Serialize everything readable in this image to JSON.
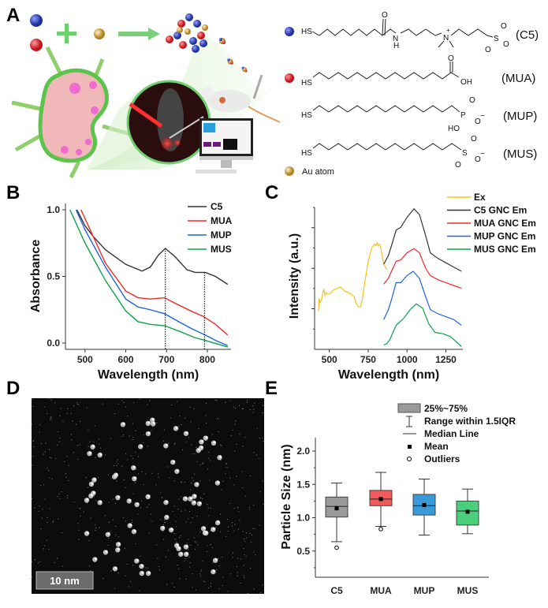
{
  "panels": {
    "a": "A",
    "b": "B",
    "c": "C",
    "d": "D",
    "e": "E"
  },
  "panel_a": {
    "ligands": [
      {
        "name": "(C5)",
        "color": "#3b4fc4"
      },
      {
        "name": "(MUA)",
        "color": "#e8323c"
      },
      {
        "name": "(MUP)"
      },
      {
        "name": "(MUS)"
      }
    ],
    "atoms": {
      "hs": "HS",
      "o": "O",
      "n": "N",
      "h": "H",
      "plus": "+",
      "s": "S",
      "minus": "−",
      "oh": "OH",
      "ho": "HO",
      "p": "P"
    },
    "au_label": "Au atom",
    "au_color": "#d4a93a"
  },
  "panel_d": {
    "scale_bar": "10 nm"
  },
  "chart_data": [
    {
      "id": "B",
      "type": "line",
      "xlabel": "Wavelength (nm)",
      "ylabel": "Absorbance",
      "xlim": [
        450,
        850
      ],
      "ylim": [
        -0.05,
        1.05
      ],
      "xticks": [
        "500",
        "600",
        "700",
        "800"
      ],
      "xtick_values": [
        500,
        600,
        700,
        800
      ],
      "yticks": [
        "0.0",
        "0.5",
        "1.0"
      ],
      "ytick_values": [
        0,
        0.5,
        1.0
      ],
      "legend_position": "top-right",
      "reference_lines_x": [
        697,
        793
      ],
      "series": [
        {
          "name": "C5",
          "color": "#333333",
          "x": [
            480,
            500,
            520,
            550,
            600,
            640,
            660,
            680,
            697,
            720,
            750,
            770,
            795,
            820,
            850
          ],
          "y": [
            1.0,
            0.88,
            0.8,
            0.7,
            0.59,
            0.54,
            0.57,
            0.66,
            0.71,
            0.65,
            0.55,
            0.53,
            0.53,
            0.5,
            0.44
          ]
        },
        {
          "name": "MUA",
          "color": "#f02a2a",
          "x": [
            490,
            520,
            550,
            600,
            630,
            660,
            695,
            720,
            760,
            790,
            820,
            850
          ],
          "y": [
            1.0,
            0.8,
            0.6,
            0.39,
            0.34,
            0.33,
            0.34,
            0.3,
            0.24,
            0.2,
            0.14,
            0.06
          ]
        },
        {
          "name": "MUP",
          "color": "#1f63e0",
          "x": [
            478,
            500,
            550,
            600,
            630,
            660,
            695,
            730,
            760,
            795,
            820,
            850
          ],
          "y": [
            1.0,
            0.85,
            0.57,
            0.33,
            0.27,
            0.25,
            0.22,
            0.16,
            0.11,
            0.06,
            0.02,
            -0.02
          ]
        },
        {
          "name": "MUS",
          "color": "#0ea34a",
          "x": [
            463,
            500,
            550,
            600,
            630,
            660,
            695,
            730,
            770,
            800,
            850
          ],
          "y": [
            1.0,
            0.75,
            0.47,
            0.24,
            0.16,
            0.14,
            0.13,
            0.09,
            0.04,
            0.015,
            -0.03
          ]
        }
      ]
    },
    {
      "id": "C",
      "type": "line",
      "xlabel": "Wavelength (nm)",
      "ylabel": "Intensity (a.u.)",
      "xlim": [
        400,
        1350
      ],
      "ylim": [
        0,
        1
      ],
      "xticks": [
        "500",
        "750",
        "1000",
        "1250"
      ],
      "xtick_values": [
        500,
        750,
        1000,
        1250
      ],
      "ytick_values": [
        0.143,
        0.286,
        0.429,
        0.571,
        0.714,
        0.857,
        1.0
      ],
      "legend_position": "top-right",
      "series": [
        {
          "name": "Ex",
          "color": "#f7c21b",
          "x": [
            430,
            435,
            440,
            450,
            458,
            465,
            472,
            480,
            490,
            500,
            530,
            570,
            600,
            640,
            660,
            670,
            685,
            700,
            712,
            725,
            750,
            775,
            790,
            800,
            808,
            815,
            822,
            830,
            840,
            850,
            860,
            870
          ],
          "y": [
            0.27,
            0.36,
            0.33,
            0.35,
            0.4,
            0.42,
            0.38,
            0.4,
            0.39,
            0.39,
            0.42,
            0.44,
            0.41,
            0.39,
            0.37,
            0.33,
            0.3,
            0.3,
            0.35,
            0.45,
            0.62,
            0.72,
            0.74,
            0.73,
            0.75,
            0.73,
            0.74,
            0.72,
            0.66,
            0.6,
            0.58,
            0.56
          ]
        },
        {
          "name": "C5 GNC Em",
          "color": "#333333",
          "x": [
            850,
            880,
            900,
            930,
            960,
            1000,
            1045,
            1080,
            1120,
            1150,
            1200,
            1250,
            1300,
            1350
          ],
          "y": [
            0.6,
            0.66,
            0.73,
            0.84,
            0.86,
            0.93,
            0.99,
            0.95,
            0.8,
            0.68,
            0.64,
            0.61,
            0.58,
            0.55
          ]
        },
        {
          "name": "MUA GNC Em",
          "color": "#f02a2a",
          "x": [
            850,
            880,
            900,
            930,
            960,
            1000,
            1045,
            1080,
            1120,
            1150,
            1200,
            1250,
            1300,
            1350
          ],
          "y": [
            0.46,
            0.5,
            0.55,
            0.62,
            0.63,
            0.68,
            0.71,
            0.68,
            0.57,
            0.52,
            0.49,
            0.47,
            0.45,
            0.43
          ]
        },
        {
          "name": "MUP GNC Em",
          "color": "#1f63e0",
          "x": [
            850,
            880,
            900,
            930,
            960,
            1000,
            1040,
            1080,
            1120,
            1150,
            1200,
            1250,
            1300,
            1350
          ],
          "y": [
            0.21,
            0.28,
            0.35,
            0.47,
            0.47,
            0.52,
            0.55,
            0.5,
            0.37,
            0.28,
            0.25,
            0.23,
            0.21,
            0.17
          ]
        },
        {
          "name": "MUS GNC Em",
          "color": "#0ea34a",
          "x": [
            850,
            870,
            890,
            930,
            980,
            1020,
            1060,
            1100,
            1140,
            1180,
            1230,
            1280,
            1320,
            1350
          ],
          "y": [
            0.03,
            0.04,
            0.07,
            0.17,
            0.22,
            0.28,
            0.32,
            0.29,
            0.18,
            0.12,
            0.11,
            0.09,
            0.05,
            0.02
          ]
        }
      ]
    },
    {
      "id": "E",
      "type": "box",
      "ylabel": "Particle Size (nm)",
      "ylim": [
        0.11,
        2.2
      ],
      "yticks": [
        "0.5",
        "1.0",
        "1.5",
        "2.0"
      ],
      "ytick_values": [
        0.5,
        1.0,
        1.5,
        2.0
      ],
      "categories": [
        "C5",
        "MUA",
        "MUP",
        "MUS"
      ],
      "boxes": [
        {
          "q1": 1.01,
          "median": 1.17,
          "q3": 1.31,
          "mean": 1.14,
          "whisker_low": 0.64,
          "whisker_high": 1.52,
          "outliers": [
            0.55
          ],
          "color": "#9a9a9a"
        },
        {
          "q1": 1.18,
          "median": 1.28,
          "q3": 1.41,
          "mean": 1.28,
          "whisker_low": 0.87,
          "whisker_high": 1.68,
          "outliers": [
            0.83
          ],
          "color": "#f25a5a"
        },
        {
          "q1": 1.04,
          "median": 1.18,
          "q3": 1.35,
          "mean": 1.19,
          "whisker_low": 0.74,
          "whisker_high": 1.58,
          "outliers": [],
          "color": "#3a9ad9"
        },
        {
          "q1": 0.89,
          "median": 1.1,
          "q3": 1.25,
          "mean": 1.09,
          "whisker_low": 0.76,
          "whisker_high": 1.43,
          "outliers": [],
          "color": "#4ccf7c"
        }
      ],
      "legend": [
        "25%~75%",
        "Range within 1.5IQR",
        "Median Line",
        "Mean",
        "Outliers"
      ],
      "legend_position": "top-right"
    }
  ]
}
